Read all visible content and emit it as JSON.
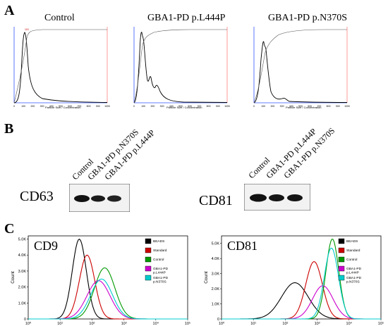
{
  "panels": {
    "A": "A",
    "B": "B",
    "C": "C"
  },
  "panel_a": {
    "titles": [
      "Control",
      "GBA1-PD p.L444P",
      "GBA1-PD p.N370S"
    ],
    "x_axis_label": "Particle Size / Concentration",
    "x_ticks": [
      "0",
      "100",
      "200",
      "300",
      "400",
      "500",
      "600",
      "700",
      "800",
      "900",
      "1000"
    ]
  },
  "panel_b": {
    "cd63": {
      "label": "CD63",
      "lanes": [
        "Control",
        "GBA1-PD p.N370S",
        "GBA1-PD p.L444P"
      ]
    },
    "cd81": {
      "label": "CD81",
      "lanes": [
        "Control",
        "GBA1-PD p.L444P",
        "GBA1-PD p.N370S"
      ]
    }
  },
  "chart_data": [
    {
      "type": "line",
      "title": "CD9",
      "ylabel": "Count",
      "y_ticks": [
        "0",
        "1.0K",
        "2.0K",
        "3.0K",
        "4.0K",
        "5.0K"
      ],
      "x_ticks": [
        "10⁰",
        "10¹",
        "10²",
        "10³",
        "10⁴",
        "10⁵"
      ],
      "x_scale": "log",
      "xlim": [
        1,
        100000
      ],
      "ylim": [
        0,
        5200
      ],
      "legend_position": "top-right",
      "series": [
        {
          "name": "BEADS",
          "color": "#000000",
          "peak_x": 40,
          "peak_y": 5000,
          "width": 0.22
        },
        {
          "name": "Standard",
          "color": "#cc0000",
          "peak_x": 70,
          "peak_y": 4000,
          "width": 0.24
        },
        {
          "name": "Control",
          "color": "#009900",
          "peak_x": 250,
          "peak_y": 3200,
          "width": 0.32
        },
        {
          "name": "GBA1-PD p.L444P",
          "color": "#cc00cc",
          "peak_x": 160,
          "peak_y": 2400,
          "width": 0.36
        },
        {
          "name": "GBA1-PD p.N370S",
          "color": "#00cccc",
          "peak_x": 200,
          "peak_y": 2500,
          "width": 0.34
        }
      ]
    },
    {
      "type": "line",
      "title": "CD81",
      "ylabel": "Count",
      "y_ticks": [
        "0",
        "1.0K",
        "2.0K",
        "3.0K",
        "4.0K",
        "5.0K"
      ],
      "x_ticks": [
        "10⁰",
        "10¹",
        "10²",
        "10³",
        "10⁴",
        "10⁵"
      ],
      "x_scale": "log",
      "xlim": [
        1,
        100000
      ],
      "ylim": [
        0,
        5500
      ],
      "legend_position": "top-right",
      "series": [
        {
          "name": "BEADS",
          "color": "#000000",
          "peak_x": 200,
          "peak_y": 2400,
          "width": 0.42
        },
        {
          "name": "Standard",
          "color": "#cc0000",
          "peak_x": 800,
          "peak_y": 3800,
          "width": 0.26
        },
        {
          "name": "Control",
          "color": "#009900",
          "peak_x": 3000,
          "peak_y": 5300,
          "width": 0.2
        },
        {
          "name": "GBA1-PD p.L444P",
          "color": "#cc00cc",
          "peak_x": 1500,
          "peak_y": 2200,
          "width": 0.32
        },
        {
          "name": "GBA1-PD p.N370S",
          "color": "#00cccc",
          "peak_x": 2800,
          "peak_y": 4700,
          "width": 0.22
        }
      ]
    }
  ]
}
